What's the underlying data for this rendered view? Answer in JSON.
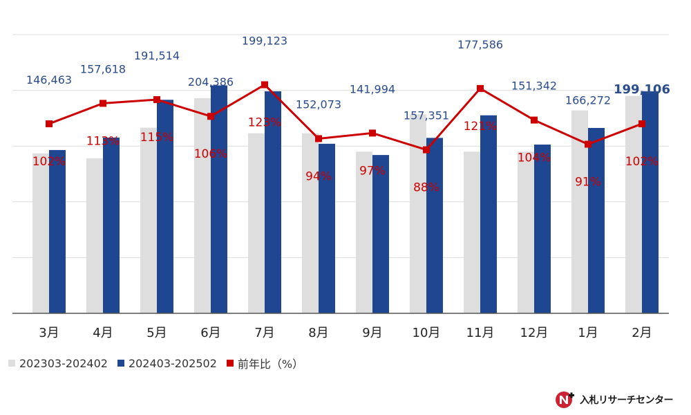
{
  "chart_data": {
    "type": "bar",
    "categories": [
      "3月",
      "4月",
      "5月",
      "6月",
      "7月",
      "8月",
      "9月",
      "10月",
      "11月",
      "12月",
      "1月",
      "2月"
    ],
    "series": [
      {
        "name": "202303-202402",
        "type": "bar",
        "color": "#dedede",
        "values": [
          143500,
          139000,
          166500,
          193000,
          161500,
          161500,
          145000,
          178500,
          145000,
          145000,
          182000,
          195000
        ]
      },
      {
        "name": "202403-202502",
        "type": "bar",
        "color": "#1f4690",
        "values": [
          146463,
          157618,
          191514,
          204386,
          199123,
          152073,
          141994,
          157351,
          177586,
          151342,
          166272,
          199106
        ]
      },
      {
        "name": "前年比（%）",
        "type": "line",
        "axis": "secondary",
        "color": "#cc0000",
        "values": [
          102,
          113,
          115,
          106,
          123,
          94,
          97,
          88,
          121,
          104,
          91,
          102
        ],
        "labels": [
          "102%",
          "113%",
          "115%",
          "106%",
          "123%",
          "94%",
          "97%",
          "88%",
          "121%",
          "104%",
          "91%",
          "102%"
        ]
      }
    ],
    "value_labels": [
      "146,463",
      "157,618",
      "191,514",
      "204,386",
      "199,123",
      "152,073",
      "141,994",
      "157,351",
      "177,586",
      "151,342",
      "166,272",
      "199,106"
    ],
    "ylim": [
      0,
      250000
    ],
    "y2lim": [
      0,
      150
    ],
    "grid": true,
    "legend_position": "bottom-left",
    "label_color": "#2b4c8c",
    "percent_label_color": "#cc0000"
  },
  "logo": {
    "text": "入札リサーチセンター",
    "mark_color": "#cc2233"
  }
}
